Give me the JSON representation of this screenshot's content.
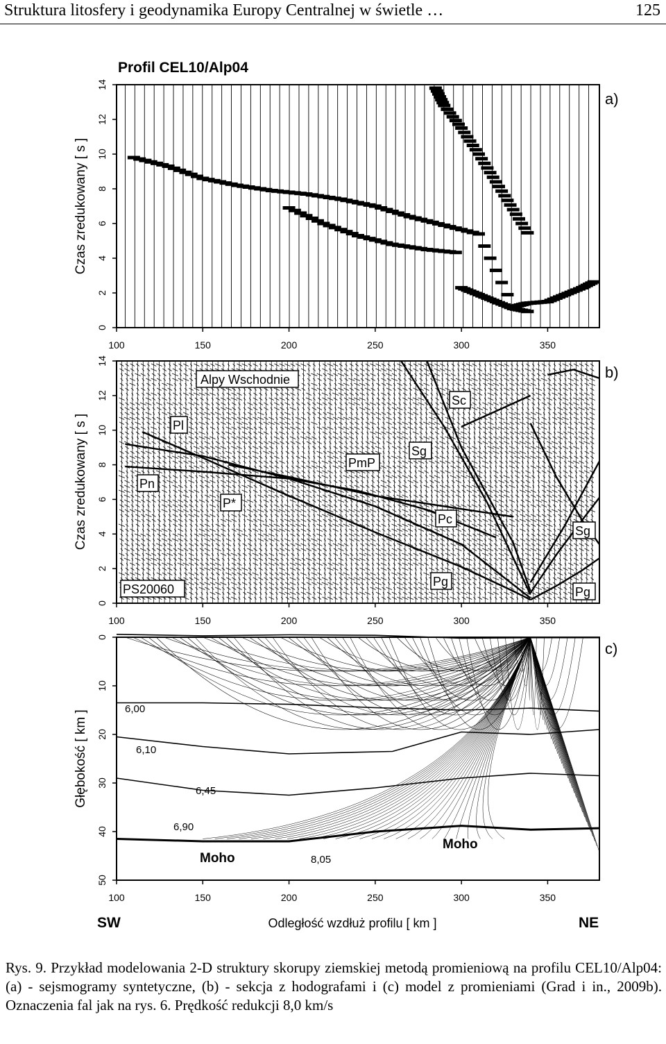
{
  "header": {
    "running_title": "Struktura litosfery i geodynamika Europy Centralnej w świetle …",
    "page_number": "125"
  },
  "figure": {
    "profile_title": "Profil CEL10/Alp04",
    "panel_labels": [
      "a)",
      "b)",
      "c)"
    ],
    "ylabel_time": "Czas  zredukowany  [ s ]",
    "ylabel_depth": "Głębokość  [ km ]",
    "xlabel": "Odległość wzdłuż profilu  [ km ]",
    "xticks": [
      "100",
      "150",
      "200",
      "250",
      "300",
      "350"
    ],
    "time_ticks": [
      "0",
      "2",
      "4",
      "6",
      "8",
      "10",
      "12",
      "14"
    ],
    "depth_ticks": [
      "0",
      "10",
      "20",
      "30",
      "40",
      "50"
    ],
    "sw_label": "SW",
    "ne_label": "NE",
    "panel_b_labels": {
      "region": "Alpy Wschodnie",
      "shotpoint": "PS20060",
      "pl": "Pl",
      "pn": "Pn",
      "p_star": "P*",
      "pmp": "PmP",
      "sg_top": "Sg",
      "sc": "Sc",
      "pc": "Pc",
      "pg_mid": "Pg",
      "sg_right": "Sg",
      "pg_right": "Pg"
    },
    "panel_c_labels": {
      "v1": "6,00",
      "v2": "6,10",
      "v3": "6,45",
      "v4": "6,90",
      "v5": "8,05",
      "moho_left": "Moho",
      "moho_right": "Moho"
    }
  },
  "chart_data": [
    {
      "type": "line",
      "title": "Profil CEL10/Alp04",
      "panel": "a)",
      "xlabel": "Odległość wzdłuż profilu  [ km ]",
      "ylabel": "Czas  zredukowany  [ s ]",
      "xlim": [
        100,
        380
      ],
      "ylim": [
        0,
        14
      ],
      "grid": false,
      "series": [
        {
          "x": [
            110,
            130,
            150,
            170,
            190,
            210,
            230,
            250,
            270,
            290,
            310,
            330,
            338,
            350,
            360,
            370,
            378
          ],
          "y": [
            9.8,
            9.3,
            8.6,
            8.2,
            7.9,
            7.7,
            7.4,
            7.0,
            6.4,
            5.9,
            5.4,
            1.2,
            1.4,
            1.5,
            1.9,
            2.3,
            2.7
          ]
        },
        {
          "x": [
            200,
            220,
            240,
            260,
            280,
            300
          ],
          "y": [
            6.9,
            6.0,
            5.3,
            4.8,
            4.5,
            4.3
          ]
        },
        {
          "x": [
            285,
            290,
            300,
            310,
            320,
            330,
            340
          ],
          "y": [
            13.8,
            12.8,
            11.5,
            10.0,
            8.4,
            6.8,
            5.2
          ]
        },
        {
          "x": [
            300,
            310,
            320,
            330,
            340
          ],
          "y": [
            2.3,
            1.9,
            1.5,
            1.1,
            0.9
          ]
        }
      ]
    },
    {
      "type": "line",
      "panel": "b)",
      "xlabel": "Odległość wzdłuż profilu  [ km ]",
      "ylabel": "Czas  zredukowany  [ s ]",
      "xlim": [
        100,
        380
      ],
      "ylim": [
        0,
        14
      ],
      "grid": false,
      "series": [
        {
          "x": [
            115,
            150,
            200,
            250,
            300,
            330,
            340
          ],
          "y": [
            9.9,
            8.4,
            6.2,
            4.1,
            2.1,
            0.7,
            0.2
          ]
        },
        {
          "x": [
            105,
            150,
            200,
            250,
            300,
            340
          ],
          "y": [
            9.2,
            8.5,
            7.2,
            5.6,
            3.4,
            0.3
          ]
        },
        {
          "x": [
            105,
            150,
            200,
            240,
            280,
            320
          ],
          "y": [
            7.9,
            7.6,
            7.2,
            6.5,
            5.4,
            3.8
          ]
        },
        {
          "x": [
            165,
            200,
            250,
            290,
            330
          ],
          "y": [
            8.0,
            7.3,
            6.2,
            5.6,
            5.0
          ]
        },
        {
          "x": [
            265,
            290,
            315,
            340
          ],
          "y": [
            14.0,
            10.2,
            5.8,
            0.5
          ]
        },
        {
          "x": [
            280,
            300,
            330,
            340
          ],
          "y": [
            14.0,
            9.0,
            3.5,
            0.7
          ]
        },
        {
          "x": [
            340,
            355,
            370,
            380
          ],
          "y": [
            0.2,
            1.0,
            1.9,
            2.6
          ]
        },
        {
          "x": [
            340,
            355,
            370,
            380
          ],
          "y": [
            0.6,
            2.8,
            4.8,
            6.1
          ]
        },
        {
          "x": [
            340,
            360,
            380
          ],
          "y": [
            1.2,
            4.5,
            8.2
          ]
        },
        {
          "x": [
            300,
            320,
            340
          ],
          "y": [
            10.2,
            11.1,
            12.0
          ]
        },
        {
          "x": [
            350,
            365,
            380
          ],
          "y": [
            13.2,
            13.5,
            13.0
          ]
        },
        {
          "x": [
            340,
            355,
            370,
            380
          ],
          "y": [
            10.4,
            7.3,
            4.8,
            3.4
          ]
        }
      ]
    },
    {
      "type": "line",
      "panel": "c)",
      "xlabel": "Odległość wzdłuż profilu  [ km ]",
      "ylabel": "Głębokość  [ km ]",
      "xlim": [
        100,
        380
      ],
      "ylim": [
        50,
        0
      ],
      "grid": false,
      "series": [
        {
          "x": [
            100,
            150,
            200,
            250,
            300,
            340,
            380
          ],
          "y": [
            -0.6,
            -0.3,
            -0.5,
            -0.4,
            0.2,
            0.1,
            0.1
          ]
        },
        {
          "x": [
            100,
            150,
            200,
            250,
            300,
            340,
            380
          ],
          "y": [
            13.5,
            13.5,
            13.8,
            14.5,
            15.0,
            14.6,
            15.2
          ]
        },
        {
          "x": [
            100,
            150,
            200,
            260,
            300,
            340,
            380
          ],
          "y": [
            20.5,
            22.5,
            24.0,
            23.5,
            19.5,
            20.0,
            19.0
          ]
        },
        {
          "x": [
            100,
            150,
            200,
            250,
            300,
            340,
            380
          ],
          "y": [
            29.0,
            31.5,
            32.5,
            31.0,
            29.0,
            28.0,
            28.5
          ]
        },
        {
          "x": [
            100,
            150,
            200,
            250,
            300,
            340,
            380
          ],
          "y": [
            41.5,
            42.0,
            42.0,
            40.0,
            38.8,
            39.6,
            39.3
          ]
        }
      ]
    }
  ],
  "caption": {
    "lead": "Rys. 9.",
    "text": "Przykład modelowania 2-D struktury skorupy ziemskiej metodą promieniową na profilu CEL10/Alp04: (a) - sejsmogramy syntetyczne, (b) - sekcja z hodografami i (c) model z promieniami (Grad i in., 2009b). Oznaczenia fal jak na rys. 6. Prędkość redukcji 8,0 km/s"
  }
}
